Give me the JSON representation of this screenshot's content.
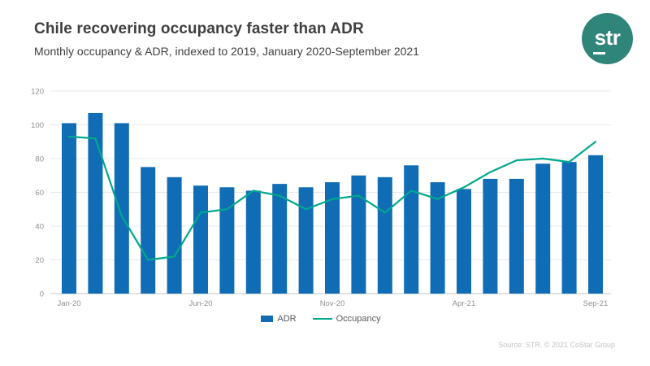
{
  "header": {
    "title": "Chile recovering occupancy faster than ADR",
    "subtitle": "Monthly occupancy & ADR, indexed to 2019, January 2020-September 2021",
    "logo_text": "str"
  },
  "colors": {
    "bar": "#106cb5",
    "line": "#00a88e",
    "logo_circle": "#2f8579",
    "title_text": "#3f3f3f",
    "axis_text": "#8f8f8f",
    "gridline": "#e8e8e8",
    "zero_axis": "#c6c6c6",
    "legend_text": "#595959",
    "source_text": "#c3c3c3"
  },
  "chart_data": {
    "type": "bar",
    "subtype": "bar-with-line-overlay",
    "categories": [
      "Jan-20",
      "Feb-20",
      "Mar-20",
      "Apr-20",
      "May-20",
      "Jun-20",
      "Jul-20",
      "Aug-20",
      "Sep-20",
      "Oct-20",
      "Nov-20",
      "Dec-20",
      "Jan-21",
      "Feb-21",
      "Mar-21",
      "Apr-21",
      "May-21",
      "Jun-21",
      "Jul-21",
      "Aug-21",
      "Sep-21"
    ],
    "series": [
      {
        "name": "ADR",
        "type": "bar",
        "values": [
          101,
          107,
          101,
          75,
          69,
          64,
          63,
          61,
          65,
          63,
          66,
          70,
          69,
          76,
          66,
          62,
          68,
          68,
          77,
          78,
          82
        ]
      },
      {
        "name": "Occupancy",
        "type": "line",
        "values": [
          93,
          92,
          46,
          20,
          22,
          48,
          50,
          61,
          58,
          50,
          56,
          58,
          48,
          61,
          56,
          63,
          72,
          79,
          80,
          78,
          90
        ]
      }
    ],
    "title": "",
    "xlabel": "",
    "ylabel": "",
    "ylim": [
      0,
      120
    ],
    "yticks": [
      0,
      20,
      40,
      60,
      80,
      100,
      120
    ],
    "xtick_labels_shown": [
      "Jan-20",
      "Jun-20",
      "Nov-20",
      "Apr-21",
      "Sep-21"
    ],
    "xtick_interval": 5,
    "grid": "horizontal",
    "legend_position": "bottom-center"
  },
  "footer": {
    "source": "Source: STR. © 2021 CoStar Group"
  }
}
